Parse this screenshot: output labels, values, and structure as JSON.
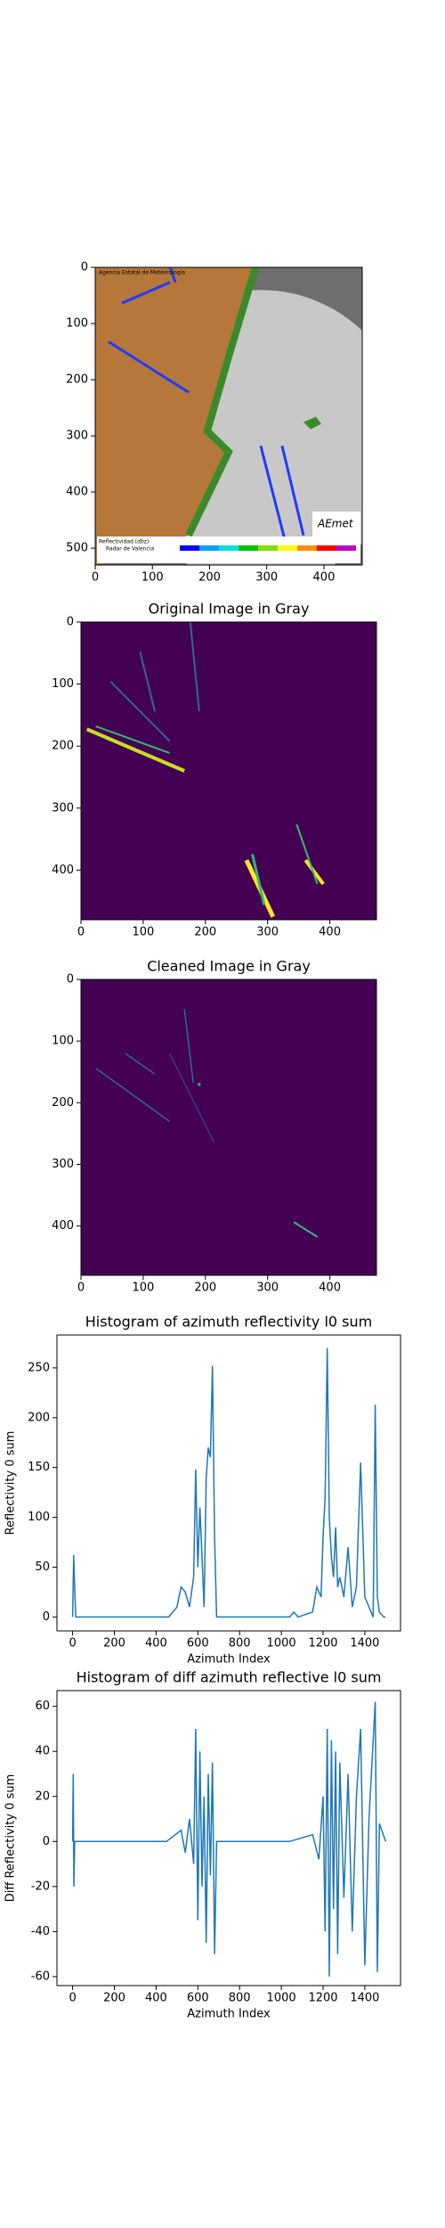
{
  "chart_data": [
    {
      "type": "image",
      "xlim": [
        0,
        467
      ],
      "ylim": [
        530,
        0
      ],
      "xticks": [
        0,
        100,
        200,
        300,
        400
      ],
      "yticks": [
        0,
        100,
        200,
        300,
        400,
        500
      ],
      "annotations": [
        "Agencia Estatal de Meteorología",
        "Reflectividad (dbz)",
        "Radar de Valencia",
        "AEmet"
      ]
    },
    {
      "type": "image",
      "title": "Original Image in Gray",
      "xlim": [
        0,
        475
      ],
      "ylim": [
        480,
        0
      ],
      "xticks": [
        0,
        100,
        200,
        300,
        400
      ],
      "yticks": [
        0,
        100,
        200,
        300,
        400
      ]
    },
    {
      "type": "image",
      "title": "Cleaned Image in Gray",
      "xlim": [
        0,
        475
      ],
      "ylim": [
        480,
        0
      ],
      "xticks": [
        0,
        100,
        200,
        300,
        400
      ],
      "yticks": [
        0,
        100,
        200,
        300,
        400
      ]
    },
    {
      "type": "line",
      "title": "Histogram of azimuth reflectivity l0 sum",
      "xlabel": "Azimuth Index",
      "ylabel": "Reflectivity 0 sum",
      "xlim": [
        -75,
        1571
      ],
      "ylim": [
        -14,
        283
      ],
      "xticks": [
        0,
        200,
        400,
        600,
        800,
        1000,
        1200,
        1400
      ],
      "yticks": [
        0,
        50,
        100,
        150,
        200,
        250
      ],
      "series": [
        {
          "color": "#1f77b4",
          "x": [
            0,
            5,
            10,
            15,
            20,
            460,
            480,
            500,
            520,
            540,
            560,
            580,
            590,
            600,
            610,
            620,
            630,
            640,
            650,
            660,
            670,
            680,
            690,
            1040,
            1060,
            1080,
            1150,
            1170,
            1190,
            1200,
            1210,
            1220,
            1230,
            1240,
            1250,
            1260,
            1270,
            1280,
            1300,
            1320,
            1340,
            1360,
            1380,
            1400,
            1420,
            1440,
            1450,
            1460,
            1470,
            1490,
            1500
          ],
          "values": [
            0,
            62,
            30,
            0,
            0,
            0,
            5,
            10,
            30,
            25,
            10,
            40,
            148,
            50,
            110,
            60,
            10,
            140,
            170,
            160,
            252,
            80,
            0,
            0,
            5,
            0,
            5,
            30,
            20,
            80,
            120,
            270,
            100,
            60,
            40,
            90,
            30,
            40,
            20,
            70,
            10,
            30,
            155,
            20,
            10,
            0,
            213,
            20,
            5,
            0,
            0
          ]
        }
      ]
    },
    {
      "type": "line",
      "title": "Histogram of diff azimuth reflective l0 sum",
      "xlabel": "Azimuth Index",
      "ylabel": "Diff Reflectivity 0 sum",
      "xlim": [
        -75,
        1571
      ],
      "ylim": [
        -64,
        67
      ],
      "xticks": [
        0,
        200,
        400,
        600,
        800,
        1000,
        1200,
        1400
      ],
      "yticks": [
        -60,
        -40,
        -20,
        0,
        20,
        40,
        60
      ],
      "series": [
        {
          "color": "#1f77b4",
          "x": [
            0,
            3,
            6,
            10,
            450,
            520,
            540,
            560,
            580,
            590,
            600,
            610,
            620,
            630,
            640,
            650,
            660,
            670,
            680,
            690,
            1040,
            1150,
            1180,
            1200,
            1210,
            1220,
            1230,
            1240,
            1250,
            1260,
            1270,
            1280,
            1300,
            1320,
            1340,
            1360,
            1380,
            1400,
            1420,
            1450,
            1460,
            1470,
            1500
          ],
          "values": [
            0,
            30,
            -20,
            0,
            0,
            5,
            -5,
            10,
            -10,
            50,
            -35,
            40,
            -20,
            20,
            -45,
            30,
            -15,
            35,
            -50,
            0,
            0,
            3,
            -8,
            20,
            -40,
            50,
            -60,
            45,
            -30,
            40,
            -50,
            35,
            -25,
            30,
            -40,
            20,
            50,
            -55,
            10,
            62,
            -58,
            8,
            0
          ]
        }
      ]
    }
  ]
}
